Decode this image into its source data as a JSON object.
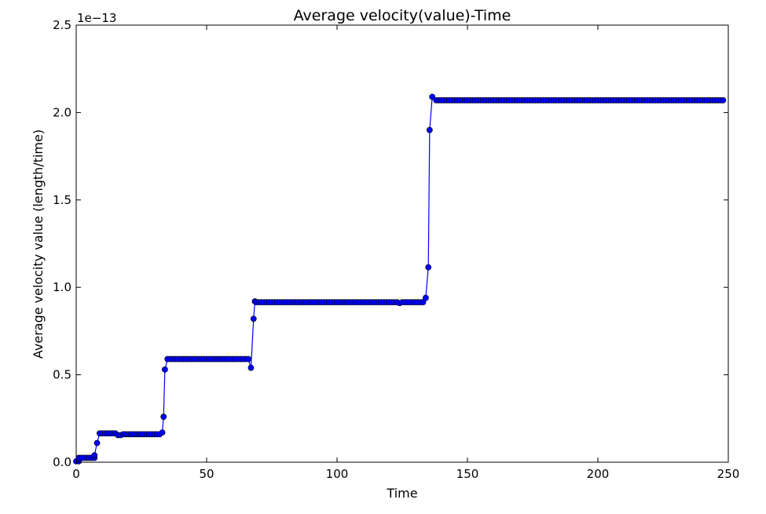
{
  "chart_data": {
    "type": "line",
    "title": "Average velocity(value)-Time",
    "xlabel": "Time",
    "ylabel": "Average velocity value (length/time)",
    "y_offset_label": "1e−13",
    "xlim": [
      0,
      250
    ],
    "ylim": [
      0,
      2.5
    ],
    "x_ticks": [
      0,
      50,
      100,
      150,
      200,
      250
    ],
    "x_tick_labels": [
      "0",
      "50",
      "100",
      "150",
      "200",
      "250"
    ],
    "y_ticks": [
      0,
      0.5,
      1.0,
      1.5,
      2.0,
      2.5
    ],
    "y_tick_labels": [
      "0.0",
      "0.5",
      "1.0",
      "1.5",
      "2.0",
      "2.5"
    ],
    "grid": false,
    "series_color": "#0000ff",
    "marker": "circle",
    "segments": [
      {
        "x_from": 0,
        "x_to": 1,
        "value": 0.005
      },
      {
        "x_from": 1,
        "x_to": 7,
        "value": 0.025
      },
      {
        "x_from": 9,
        "x_to": 15,
        "value": 0.165
      },
      {
        "x_from": 16,
        "x_to": 17,
        "value": 0.155
      },
      {
        "x_from": 18,
        "x_to": 32,
        "value": 0.16
      },
      {
        "x_from": 35,
        "x_to": 66,
        "value": 0.59
      },
      {
        "x_from": 69,
        "x_to": 123,
        "value": 0.915
      },
      {
        "x_from": 124,
        "x_to": 124,
        "value": 0.91
      },
      {
        "x_from": 125,
        "x_to": 133,
        "value": 0.915
      },
      {
        "x_from": 138,
        "x_to": 248,
        "value": 2.07
      }
    ],
    "transition_points": [
      {
        "x": 7,
        "y": 0.04
      },
      {
        "x": 8,
        "y": 0.11
      },
      {
        "x": 33,
        "y": 0.17
      },
      {
        "x": 33.5,
        "y": 0.26
      },
      {
        "x": 34,
        "y": 0.53
      },
      {
        "x": 67,
        "y": 0.54
      },
      {
        "x": 68,
        "y": 0.82
      },
      {
        "x": 68.5,
        "y": 0.92
      },
      {
        "x": 134,
        "y": 0.94
      },
      {
        "x": 135,
        "y": 1.115
      },
      {
        "x": 135.5,
        "y": 1.9
      },
      {
        "x": 136.5,
        "y": 2.09
      }
    ]
  }
}
